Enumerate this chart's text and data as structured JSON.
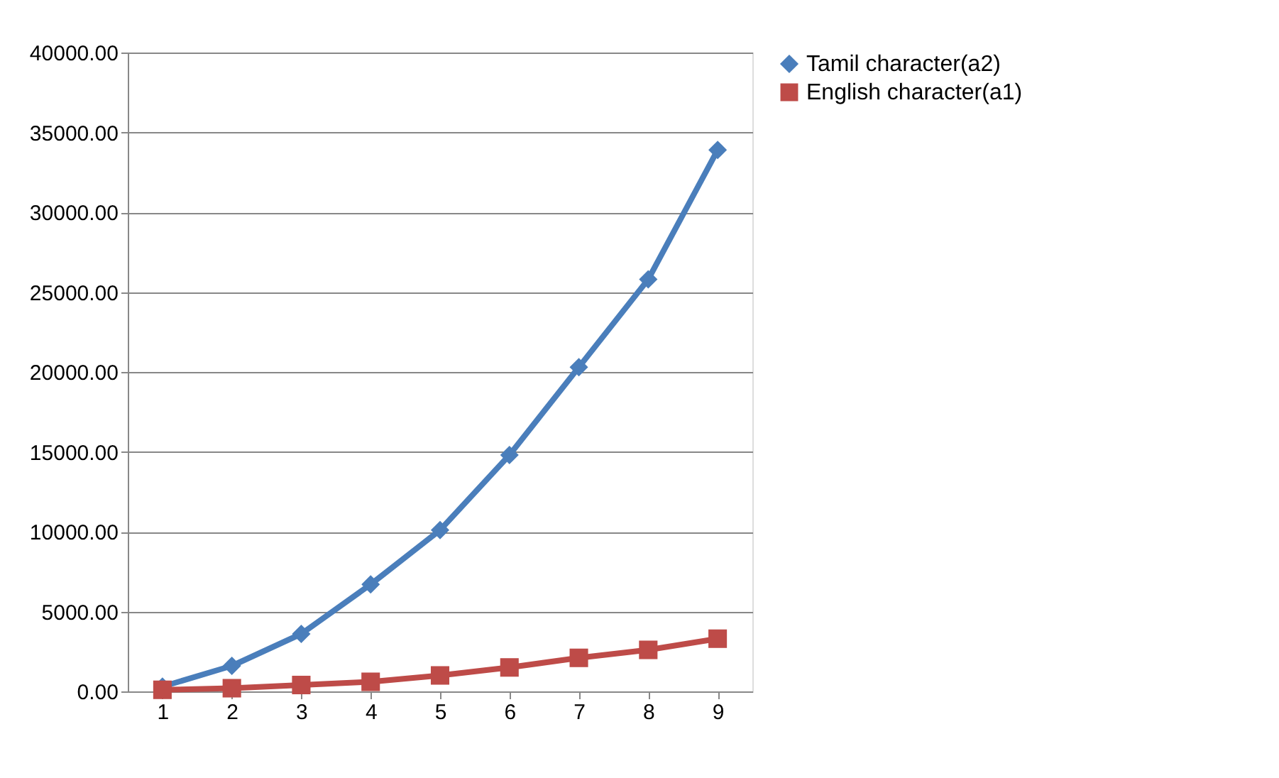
{
  "chart_data": {
    "type": "line",
    "categories": [
      "1",
      "2",
      "3",
      "4",
      "5",
      "6",
      "7",
      "8",
      "9"
    ],
    "series": [
      {
        "name": "Tamil character(a2)",
        "color": "#4a7ebb",
        "marker": "diamond",
        "values": [
          300,
          1600,
          3600,
          6700,
          10100,
          14800,
          20300,
          25800,
          33900
        ]
      },
      {
        "name": "English character(a1)",
        "color": "#be4b48",
        "marker": "square",
        "values": [
          100,
          200,
          400,
          600,
          1000,
          1500,
          2100,
          2600,
          3300
        ]
      }
    ],
    "ylim": [
      0,
      40000
    ],
    "yticks": [
      {
        "value": 0,
        "label": "0.00"
      },
      {
        "value": 5000,
        "label": "5000.00"
      },
      {
        "value": 10000,
        "label": "10000.00"
      },
      {
        "value": 15000,
        "label": "15000.00"
      },
      {
        "value": 20000,
        "label": "20000.00"
      },
      {
        "value": 25000,
        "label": "25000.00"
      },
      {
        "value": 30000,
        "label": "30000.00"
      },
      {
        "value": 35000,
        "label": "35000.00"
      },
      {
        "value": 40000,
        "label": "40000.00"
      }
    ],
    "grid": "y",
    "legend": "right",
    "line_style": "solid"
  }
}
